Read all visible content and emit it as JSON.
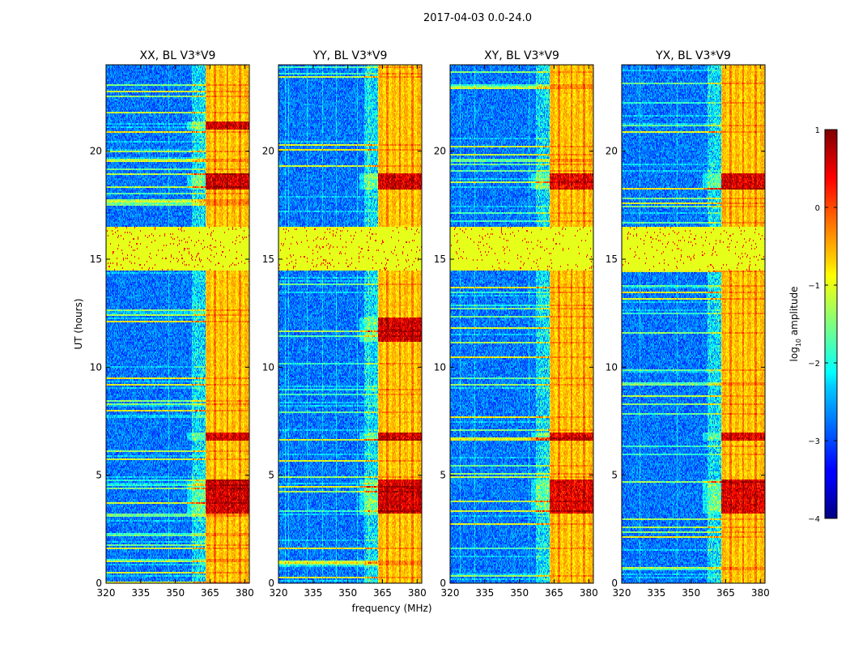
{
  "figure": {
    "suptitle": "2017-04-03 0.0-24.0",
    "xlabel": "frequency (MHz)",
    "ylabel": "UT (hours)"
  },
  "colorbar": {
    "label_prefix": "log",
    "label_sub": "10",
    "label_suffix": " amplitude",
    "range": [
      -4,
      1
    ],
    "ticks": [
      1,
      0,
      -1,
      -2,
      -3,
      -4
    ],
    "tick_labels": [
      "1",
      "0",
      "−1",
      "−2",
      "−3",
      "−4"
    ],
    "colormap": "jet"
  },
  "chart_data": [
    {
      "type": "heatmap",
      "title": "XX, BL V3*V9",
      "polarization": "XX",
      "baseline": "V3*V9",
      "xlim": [
        320,
        382
      ],
      "ylim": [
        0,
        24
      ],
      "xticks": [
        320,
        335,
        350,
        365,
        380
      ],
      "yticks": [
        0,
        5,
        10,
        15,
        20
      ],
      "z_units": "log10 amplitude",
      "features": {
        "background_level": -2.8,
        "rfi_band_MHz": [
          363,
          382
        ],
        "rfi_band_level": -0.6,
        "flagged_hours": [
          14.5,
          16.5
        ],
        "flagged_level": -1.0,
        "strong_rfi_hours": [
          [
            3.2,
            4.8
          ],
          [
            6.6,
            7.0
          ],
          [
            18.2,
            19.0
          ],
          [
            21.0,
            21.4
          ]
        ],
        "strong_rfi_level": 0.5
      }
    },
    {
      "type": "heatmap",
      "title": "YY, BL V3*V9",
      "polarization": "YY",
      "baseline": "V3*V9",
      "xlim": [
        320,
        382
      ],
      "ylim": [
        0,
        24
      ],
      "xticks": [
        320,
        335,
        350,
        365,
        380
      ],
      "yticks": [
        0,
        5,
        10,
        15,
        20
      ],
      "z_units": "log10 amplitude",
      "features": {
        "background_level": -2.8,
        "rfi_band_MHz": [
          363,
          382
        ],
        "rfi_band_level": -0.6,
        "flagged_hours": [
          14.5,
          16.5
        ],
        "flagged_level": -1.0,
        "strong_rfi_hours": [
          [
            3.2,
            4.8
          ],
          [
            6.6,
            7.0
          ],
          [
            11.2,
            12.3
          ],
          [
            18.2,
            19.0
          ]
        ],
        "strong_rfi_level": 0.5
      }
    },
    {
      "type": "heatmap",
      "title": "XY, BL V3*V9",
      "polarization": "XY",
      "baseline": "V3*V9",
      "xlim": [
        320,
        382
      ],
      "ylim": [
        0,
        24
      ],
      "xticks": [
        320,
        335,
        350,
        365,
        380
      ],
      "yticks": [
        0,
        5,
        10,
        15,
        20
      ],
      "z_units": "log10 amplitude",
      "features": {
        "background_level": -2.8,
        "rfi_band_MHz": [
          363,
          382
        ],
        "rfi_band_level": -0.6,
        "flagged_hours": [
          14.5,
          16.5
        ],
        "flagged_level": -1.0,
        "strong_rfi_hours": [
          [
            3.2,
            4.8
          ],
          [
            6.6,
            7.0
          ],
          [
            18.2,
            19.0
          ]
        ],
        "strong_rfi_level": 0.4
      }
    },
    {
      "type": "heatmap",
      "title": "YX, BL V3*V9",
      "polarization": "YX",
      "baseline": "V3*V9",
      "xlim": [
        320,
        382
      ],
      "ylim": [
        0,
        24
      ],
      "xticks": [
        320,
        335,
        350,
        365,
        380
      ],
      "yticks": [
        0,
        5,
        10,
        15,
        20
      ],
      "z_units": "log10 amplitude",
      "features": {
        "background_level": -2.8,
        "rfi_band_MHz": [
          363,
          382
        ],
        "rfi_band_level": -0.6,
        "flagged_hours": [
          14.5,
          16.5
        ],
        "flagged_level": -1.0,
        "strong_rfi_hours": [
          [
            3.2,
            4.8
          ],
          [
            6.6,
            7.0
          ],
          [
            18.2,
            19.0
          ]
        ],
        "strong_rfi_level": 0.45
      }
    }
  ]
}
